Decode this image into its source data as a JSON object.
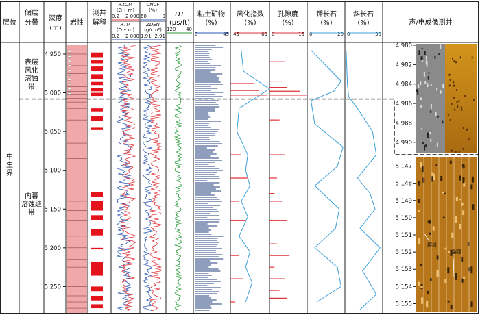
{
  "chart_data": {
    "type": "well-log",
    "columns": {
      "layer": "层位",
      "reservoir": [
        "储层",
        "分带"
      ],
      "depth": [
        "深度",
        "(m)"
      ],
      "lith": "岩性",
      "interp": [
        "测井",
        "解释"
      ],
      "rxom": {
        "name": "RXOM",
        "unit": "(Ω • m)",
        "min": "0.2",
        "max": "2 000"
      },
      "rtm": {
        "name": "RTM",
        "unit": "(Ω • m)",
        "min": "0.2",
        "max": "2 000"
      },
      "cncf": {
        "name": "CNCF",
        "unit": "(%)",
        "min": "60",
        "max": "0"
      },
      "zden": {
        "name": "ZDEN",
        "unit": "(g/cm³)",
        "min": "1.91",
        "max": "2.91"
      },
      "dt": {
        "name": "DT",
        "unit": "(μs/ft)",
        "min": "120",
        "max": "40"
      },
      "clay": {
        "name": "粘土矿物",
        "unit": "(%)",
        "min": "0",
        "max": "45"
      },
      "weath": {
        "name": "风化指数",
        "unit": "(%)",
        "min": "45",
        "max": "63"
      },
      "poro": {
        "name": "孔隙度",
        "unit": "(%)",
        "min": "0",
        "max": "15"
      },
      "kfs": {
        "name": "钾长石",
        "unit": "(%)",
        "min": "0",
        "max": "20"
      },
      "plag": {
        "name": "斜长石",
        "unit": "(%)",
        "min": "0",
        "max": "30"
      },
      "image": "声/电成像测井"
    },
    "layer_label": [
      "中",
      "生",
      "界"
    ],
    "zones": [
      {
        "name": [
          "表层",
          "风化",
          "溶蚀",
          "带"
        ],
        "top": 4945,
        "bottom": 5008
      },
      {
        "name": [
          "内幕",
          "溶蚀缝",
          "带"
        ],
        "top": 5008,
        "bottom": 5280
      }
    ],
    "depth_range": [
      4935,
      5285
    ],
    "depth_ticks": [
      4950,
      5000,
      5050,
      5100,
      5150,
      5200,
      5250
    ],
    "depth_tick_labels": [
      "4 950",
      "5 000",
      "5 050",
      "5 100",
      "5 150",
      "5 200",
      "5 250"
    ],
    "image_upper": {
      "ticks": [
        4980,
        4982,
        4984,
        4986,
        4988,
        4990
      ],
      "labels": [
        "4 980",
        "4 982",
        "4 984",
        "4 986",
        "4 988",
        "4 990"
      ],
      "range": [
        4980,
        4991
      ]
    },
    "image_lower": {
      "ticks": [
        5147,
        5148,
        5149,
        5150,
        5151,
        5152,
        5153,
        5154,
        5155
      ],
      "labels": [
        "5 147",
        "5 148",
        "5 149",
        "5 150",
        "5 151",
        "5 152",
        "5 153",
        "5 154",
        "5 155"
      ],
      "range": [
        5146.5,
        5155.5
      ]
    },
    "image_annotations": [
      "裂缝",
      "裂缝"
    ],
    "weathering_index": [
      [
        4945,
        50
      ],
      [
        4972,
        51
      ],
      [
        4995,
        63
      ],
      [
        5020,
        49
      ],
      [
        5050,
        48
      ],
      [
        5080,
        53
      ],
      [
        5100,
        52
      ],
      [
        5120,
        54
      ],
      [
        5140,
        50
      ],
      [
        5160,
        53
      ],
      [
        5185,
        49
      ],
      [
        5205,
        54
      ],
      [
        5225,
        52
      ],
      [
        5245,
        55
      ],
      [
        5270,
        52
      ]
    ],
    "potassium_feldspar": [
      [
        4945,
        2
      ],
      [
        4965,
        10
      ],
      [
        4985,
        18
      ],
      [
        4998,
        14
      ],
      [
        5010,
        2
      ],
      [
        5040,
        4
      ],
      [
        5070,
        19
      ],
      [
        5095,
        16
      ],
      [
        5120,
        4
      ],
      [
        5150,
        17
      ],
      [
        5175,
        15
      ],
      [
        5200,
        4
      ],
      [
        5225,
        16
      ],
      [
        5250,
        18
      ],
      [
        5270,
        5
      ]
    ],
    "plagioclase": [
      [
        4945,
        1
      ],
      [
        4990,
        2
      ],
      [
        5005,
        3
      ],
      [
        5020,
        10
      ],
      [
        5050,
        22
      ],
      [
        5080,
        25
      ],
      [
        5110,
        10
      ],
      [
        5130,
        20
      ],
      [
        5150,
        24
      ],
      [
        5175,
        12
      ],
      [
        5200,
        28
      ],
      [
        5230,
        14
      ],
      [
        5260,
        25
      ],
      [
        5280,
        12
      ]
    ],
    "porosity_spikes": [
      [
        4960,
        6
      ],
      [
        4985,
        5
      ],
      [
        4993,
        7
      ],
      [
        4998,
        12
      ],
      [
        5003,
        15
      ],
      [
        5035,
        4
      ],
      [
        5080,
        6
      ],
      [
        5110,
        3
      ],
      [
        5130,
        2
      ],
      [
        5140,
        5
      ],
      [
        5165,
        7
      ],
      [
        5195,
        3
      ],
      [
        5210,
        8
      ],
      [
        5225,
        2
      ],
      [
        5240,
        6
      ],
      [
        5255,
        4
      ],
      [
        5265,
        7
      ]
    ],
    "weathering_spikes": [
      [
        4988,
        56
      ],
      [
        4997,
        58
      ],
      [
        5003,
        62
      ],
      [
        5080,
        50
      ],
      [
        5110,
        53
      ],
      [
        5140,
        49
      ],
      [
        5165,
        52
      ],
      [
        5210,
        49
      ],
      [
        5240,
        51
      ],
      [
        5270,
        47
      ]
    ],
    "interp_intervals": [
      [
        4948,
        4954
      ],
      [
        4958,
        4962
      ],
      [
        4966,
        4972
      ],
      [
        4976,
        4982
      ],
      [
        4986,
        4990
      ],
      [
        4994,
        4998
      ],
      [
        5000,
        5004
      ],
      [
        5020,
        5024
      ],
      [
        5030,
        5036
      ],
      [
        5045,
        5048
      ],
      [
        5128,
        5134
      ],
      [
        5140,
        5152
      ],
      [
        5158,
        5164
      ],
      [
        5176,
        5184
      ],
      [
        5200,
        5202
      ],
      [
        5218,
        5236
      ],
      [
        5250,
        5256
      ],
      [
        5262,
        5268
      ],
      [
        5273,
        5278
      ]
    ],
    "colors": {
      "lith": "#f0a8a8",
      "interp": "#e4141c",
      "blue": "#2b58b0",
      "red": "#e0333a",
      "green": "#2a9a3a",
      "cyan": "#3aa0d8"
    }
  }
}
